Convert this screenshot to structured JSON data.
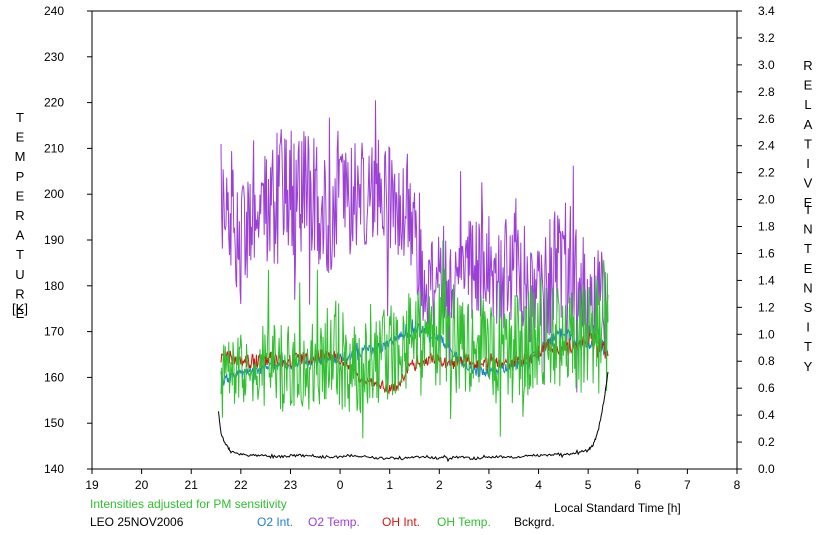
{
  "chart_data": {
    "type": "line",
    "x_axis": {
      "label": "Local Standard Time [h]",
      "ticks": [
        "19",
        "20",
        "21",
        "22",
        "23",
        "0",
        "1",
        "2",
        "3",
        "4",
        "5",
        "6",
        "7",
        "8"
      ],
      "range_hours": [
        19,
        32
      ]
    },
    "y_left": {
      "label_letters": [
        "T",
        "E",
        "M",
        "P",
        "E",
        "R",
        "A",
        "T",
        "U",
        "R",
        "E"
      ],
      "unit": "[K]",
      "range": [
        140,
        240
      ],
      "ticks": [
        "140",
        "150",
        "160",
        "170",
        "180",
        "190",
        "200",
        "210",
        "220",
        "230",
        "240"
      ]
    },
    "y_right": {
      "label_letters_1": [
        "R",
        "E",
        "L",
        "A",
        "T",
        "I",
        "V",
        "E"
      ],
      "label_letters_2": [
        "I",
        "N",
        "T",
        "E",
        "N",
        "S",
        "I",
        "T",
        "Y"
      ],
      "range": [
        0,
        3.4
      ],
      "ticks": [
        "0.0",
        "0.2",
        "0.4",
        "0.6",
        "0.8",
        "1.0",
        "1.2",
        "1.4",
        "1.6",
        "1.8",
        "2.0",
        "2.2",
        "2.4",
        "2.6",
        "2.8",
        "3.0",
        "3.2",
        "3.4"
      ]
    },
    "series": [
      {
        "name": "O2 Temp.",
        "axis": "left",
        "color": "#9b3fd6",
        "x": [
          21.6,
          21.8,
          22.0,
          22.2,
          22.4,
          22.6,
          22.8,
          23.0,
          23.2,
          23.4,
          23.6,
          23.8,
          24.0,
          24.2,
          24.4,
          24.6,
          24.8,
          25.0,
          25.2,
          25.4,
          25.6,
          25.8,
          26.0,
          26.2,
          26.4,
          26.6,
          26.8,
          27.0,
          27.2,
          27.4,
          27.6,
          27.8,
          28.0,
          28.2,
          28.4,
          28.6,
          28.8,
          29.0,
          29.2,
          29.4
        ],
        "y": [
          195,
          198,
          188,
          196,
          198,
          201,
          203,
          200,
          198,
          202,
          197,
          194,
          205,
          200,
          199,
          201,
          203,
          199,
          200,
          198,
          183,
          180,
          182,
          184,
          180,
          186,
          182,
          185,
          181,
          184,
          187,
          178,
          183,
          180,
          184,
          179,
          182,
          178,
          176,
          178
        ],
        "amp": [
          14,
          14,
          14,
          12,
          12,
          14,
          14,
          14,
          16,
          14,
          14,
          12,
          14,
          14,
          14,
          12,
          12,
          14,
          14,
          12,
          10,
          10,
          10,
          12,
          12,
          14,
          14,
          12,
          12,
          14,
          14,
          12,
          12,
          14,
          14,
          12,
          12,
          12,
          12,
          10
        ]
      },
      {
        "name": "O2 Int.",
        "axis": "right",
        "color": "#1f7fd0",
        "x": [
          21.6,
          21.8,
          22.0,
          22.2,
          22.4,
          22.6,
          22.8,
          23.0,
          23.2,
          23.4,
          23.6,
          23.8,
          24.0,
          24.2,
          24.4,
          24.6,
          24.8,
          25.0,
          25.2,
          25.4,
          25.6,
          25.8,
          26.0,
          26.2,
          26.4,
          26.6,
          26.8,
          27.0,
          27.2,
          27.4,
          27.6,
          27.8,
          28.0,
          28.2,
          28.4,
          28.6,
          28.8,
          29.0,
          29.2,
          29.4
        ],
        "y": [
          0.64,
          0.68,
          0.7,
          0.72,
          0.74,
          0.76,
          0.78,
          0.78,
          0.8,
          0.8,
          0.8,
          0.82,
          0.82,
          0.84,
          0.86,
          0.88,
          0.9,
          0.94,
          0.98,
          1.02,
          1.04,
          1.0,
          0.98,
          0.9,
          0.82,
          0.76,
          0.72,
          0.72,
          0.74,
          0.76,
          0.78,
          0.8,
          0.86,
          0.94,
          1.02,
          1.0,
          0.94,
          0.92,
          0.96,
          0.84
        ],
        "amp": [
          0.04,
          0.04,
          0.04,
          0.04,
          0.04,
          0.04,
          0.04,
          0.04,
          0.04,
          0.04,
          0.04,
          0.04,
          0.04,
          0.04,
          0.04,
          0.04,
          0.04,
          0.04,
          0.04,
          0.04,
          0.04,
          0.04,
          0.04,
          0.04,
          0.04,
          0.04,
          0.04,
          0.04,
          0.04,
          0.04,
          0.04,
          0.04,
          0.04,
          0.04,
          0.04,
          0.04,
          0.04,
          0.04,
          0.04,
          0.05
        ]
      },
      {
        "name": "OH Int.",
        "axis": "right",
        "color": "#d21414",
        "x": [
          21.6,
          21.8,
          22.0,
          22.2,
          22.4,
          22.6,
          22.8,
          23.0,
          23.2,
          23.4,
          23.6,
          23.8,
          24.0,
          24.2,
          24.4,
          24.6,
          24.8,
          25.0,
          25.2,
          25.4,
          25.6,
          25.8,
          26.0,
          26.2,
          26.4,
          26.6,
          26.8,
          27.0,
          27.2,
          27.4,
          27.6,
          27.8,
          28.0,
          28.2,
          28.4,
          28.6,
          28.8,
          29.0,
          29.2,
          29.4
        ],
        "y": [
          0.84,
          0.82,
          0.8,
          0.8,
          0.8,
          0.82,
          0.8,
          0.8,
          0.82,
          0.82,
          0.84,
          0.84,
          0.82,
          0.74,
          0.68,
          0.64,
          0.62,
          0.6,
          0.62,
          0.78,
          0.8,
          0.82,
          0.8,
          0.78,
          0.8,
          0.8,
          0.78,
          0.78,
          0.78,
          0.8,
          0.8,
          0.82,
          0.88,
          0.92,
          0.9,
          0.9,
          0.92,
          0.96,
          0.94,
          0.84
        ],
        "amp": [
          0.04,
          0.05,
          0.05,
          0.05,
          0.05,
          0.05,
          0.05,
          0.05,
          0.05,
          0.05,
          0.05,
          0.05,
          0.05,
          0.04,
          0.04,
          0.04,
          0.04,
          0.04,
          0.04,
          0.05,
          0.05,
          0.05,
          0.05,
          0.05,
          0.05,
          0.05,
          0.05,
          0.05,
          0.05,
          0.05,
          0.05,
          0.05,
          0.05,
          0.05,
          0.05,
          0.05,
          0.05,
          0.05,
          0.08,
          0.08
        ]
      },
      {
        "name": "OH Temp.",
        "axis": "left",
        "color": "#2fbf2f",
        "x": [
          21.6,
          21.8,
          22.0,
          22.2,
          22.4,
          22.6,
          22.8,
          23.0,
          23.2,
          23.4,
          23.6,
          23.8,
          24.0,
          24.2,
          24.4,
          24.6,
          24.8,
          25.0,
          25.2,
          25.4,
          25.6,
          25.8,
          26.0,
          26.2,
          26.4,
          26.6,
          26.8,
          27.0,
          27.2,
          27.4,
          27.6,
          27.8,
          28.0,
          28.2,
          28.4,
          28.6,
          28.8,
          29.0,
          29.2,
          29.4
        ],
        "y": [
          158,
          162,
          163,
          162,
          163,
          164,
          162,
          163,
          161,
          164,
          165,
          166,
          165,
          162,
          161,
          163,
          164,
          166,
          167,
          168,
          167,
          168,
          169,
          170,
          166,
          167,
          168,
          166,
          165,
          165,
          167,
          168,
          169,
          168,
          170,
          171,
          169,
          168,
          170,
          172
        ],
        "amp": [
          8,
          8,
          9,
          9,
          10,
          9,
          10,
          10,
          10,
          11,
          10,
          11,
          12,
          11,
          10,
          10,
          10,
          11,
          10,
          11,
          12,
          11,
          12,
          13,
          12,
          12,
          12,
          11,
          11,
          12,
          12,
          12,
          13,
          12,
          12,
          13,
          12,
          12,
          14,
          15
        ]
      },
      {
        "name": "Bckgrd.",
        "axis": "right",
        "color": "#000000",
        "x": [
          21.55,
          21.6,
          21.7,
          21.8,
          22.0,
          22.2,
          22.4,
          22.6,
          22.8,
          23.0,
          23.2,
          23.4,
          23.6,
          23.8,
          24.0,
          24.2,
          24.4,
          24.6,
          24.8,
          25.0,
          25.2,
          25.4,
          25.6,
          25.8,
          26.0,
          26.2,
          26.4,
          26.6,
          26.8,
          27.0,
          27.2,
          27.4,
          27.6,
          27.8,
          28.0,
          28.2,
          28.4,
          28.6,
          28.8,
          29.0,
          29.1,
          29.2,
          29.3,
          29.4
        ],
        "y": [
          0.42,
          0.26,
          0.18,
          0.13,
          0.11,
          0.1,
          0.1,
          0.09,
          0.09,
          0.1,
          0.1,
          0.09,
          0.09,
          0.09,
          0.09,
          0.1,
          0.09,
          0.09,
          0.08,
          0.08,
          0.08,
          0.08,
          0.09,
          0.09,
          0.08,
          0.08,
          0.09,
          0.08,
          0.08,
          0.09,
          0.09,
          0.09,
          0.09,
          0.1,
          0.1,
          0.1,
          0.11,
          0.11,
          0.12,
          0.14,
          0.18,
          0.28,
          0.46,
          0.72
        ]
      }
    ]
  },
  "footer": {
    "note": "Intensities adjusted for PM sensitivity",
    "station": "LEO 25NOV2006",
    "legend": [
      {
        "label": "O2 Int.",
        "color": "#1f7fd0"
      },
      {
        "label": "O2 Temp.",
        "color": "#9b3fd6"
      },
      {
        "label": "OH Int.",
        "color": "#d21414"
      },
      {
        "label": "OH Temp.",
        "color": "#2fbf2f"
      },
      {
        "label": "Bckgrd.",
        "color": "#000000"
      }
    ]
  }
}
